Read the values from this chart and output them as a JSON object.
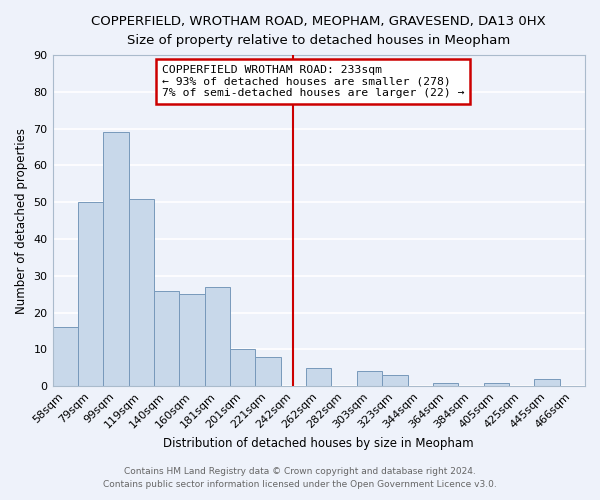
{
  "title": "COPPERFIELD, WROTHAM ROAD, MEOPHAM, GRAVESEND, DA13 0HX",
  "subtitle": "Size of property relative to detached houses in Meopham",
  "xlabel": "Distribution of detached houses by size in Meopham",
  "ylabel": "Number of detached properties",
  "footer_line1": "Contains HM Land Registry data © Crown copyright and database right 2024.",
  "footer_line2": "Contains public sector information licensed under the Open Government Licence v3.0.",
  "bar_labels": [
    "58sqm",
    "79sqm",
    "99sqm",
    "119sqm",
    "140sqm",
    "160sqm",
    "181sqm",
    "201sqm",
    "221sqm",
    "242sqm",
    "262sqm",
    "282sqm",
    "303sqm",
    "323sqm",
    "344sqm",
    "364sqm",
    "384sqm",
    "405sqm",
    "425sqm",
    "445sqm",
    "466sqm"
  ],
  "bar_values": [
    16,
    50,
    69,
    51,
    26,
    25,
    27,
    10,
    8,
    0,
    5,
    0,
    4,
    3,
    0,
    1,
    0,
    1,
    0,
    2,
    0
  ],
  "bar_color": "#c8d8ea",
  "bar_edge_color": "#7799bb",
  "background_color": "#eef2fa",
  "grid_color": "#ffffff",
  "property_line_x": 9.0,
  "annotation_title": "COPPERFIELD WROTHAM ROAD: 233sqm",
  "annotation_line1": "← 93% of detached houses are smaller (278)",
  "annotation_line2": "7% of semi-detached houses are larger (22) →",
  "annotation_box_edge_color": "#cc0000",
  "ylim": [
    0,
    90
  ],
  "yticks": [
    0,
    10,
    20,
    30,
    40,
    50,
    60,
    70,
    80,
    90
  ],
  "title_fontsize": 9.5,
  "subtitle_fontsize": 8.5,
  "axis_label_fontsize": 8.5,
  "tick_fontsize": 8,
  "footer_fontsize": 6.5,
  "footer_color": "#666666"
}
